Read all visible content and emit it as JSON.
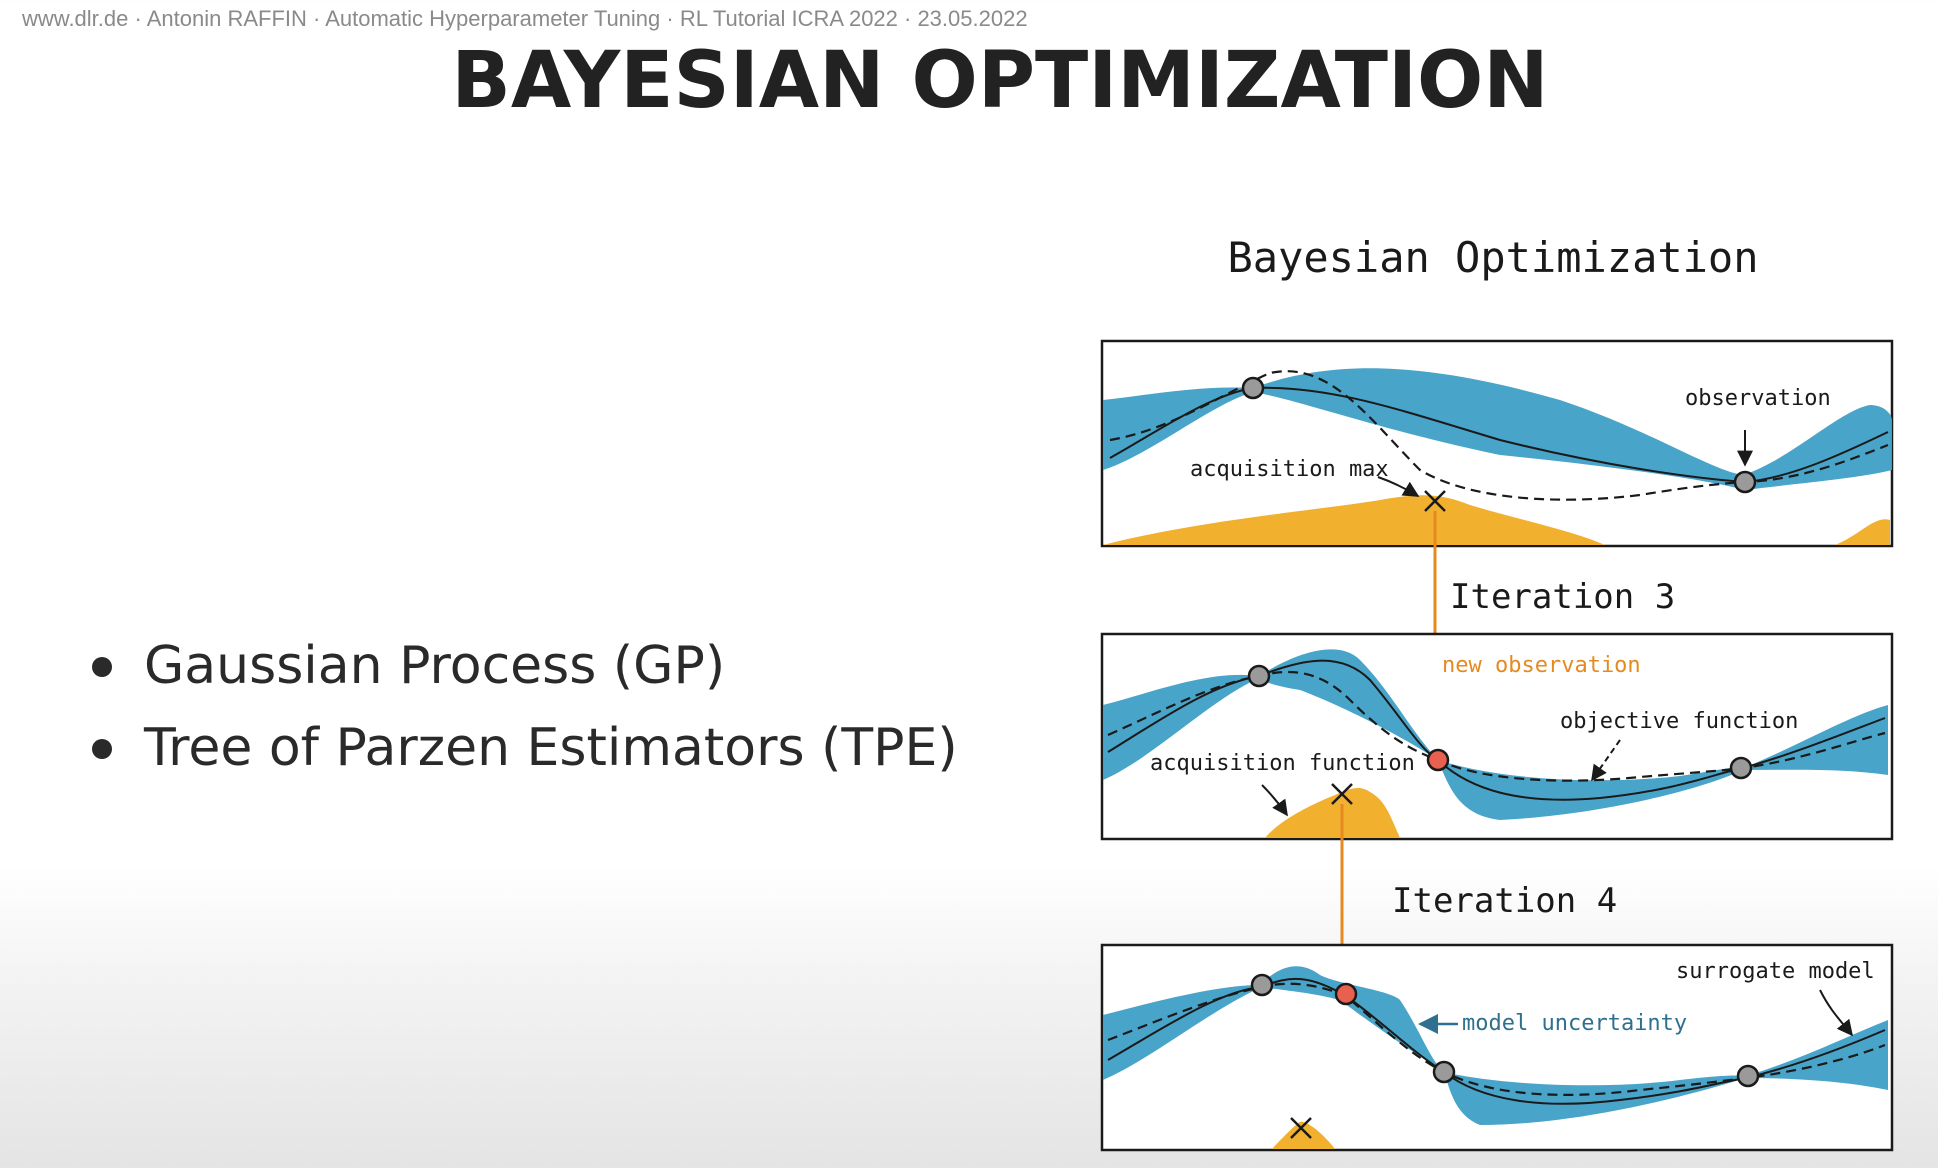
{
  "header": {
    "text": "www.dlr.de · Antonin RAFFIN · Automatic Hyperparameter Tuning · RL Tutorial ICRA 2022 · 23.05.2022"
  },
  "slide": {
    "title": "BAYESIAN OPTIMIZATION",
    "bullets": [
      "Gaussian Process (GP)",
      "Tree of Parzen Estimators (TPE)"
    ]
  },
  "figure": {
    "title": "Bayesian Optimization",
    "iteration_3_label": "Iteration 3",
    "iteration_4_label": "Iteration 4",
    "annotations": {
      "observation": "observation",
      "acquisition_max": "acquisition max",
      "new_observation": "new observation",
      "objective_function": "objective function",
      "acquisition_function": "acquisition function",
      "surrogate_model": "surrogate model",
      "model_uncertainty": "model uncertainty"
    },
    "colors": {
      "uncertainty_band": "#3f9fc6",
      "acquisition_fill": "#f2b02f",
      "arrow_orange": "#e58a1f",
      "new_point": "#e8604f",
      "old_point": "#9a9a9a",
      "uncertainty_label": "#2f6f8f",
      "ink": "#1a1a1a"
    }
  }
}
